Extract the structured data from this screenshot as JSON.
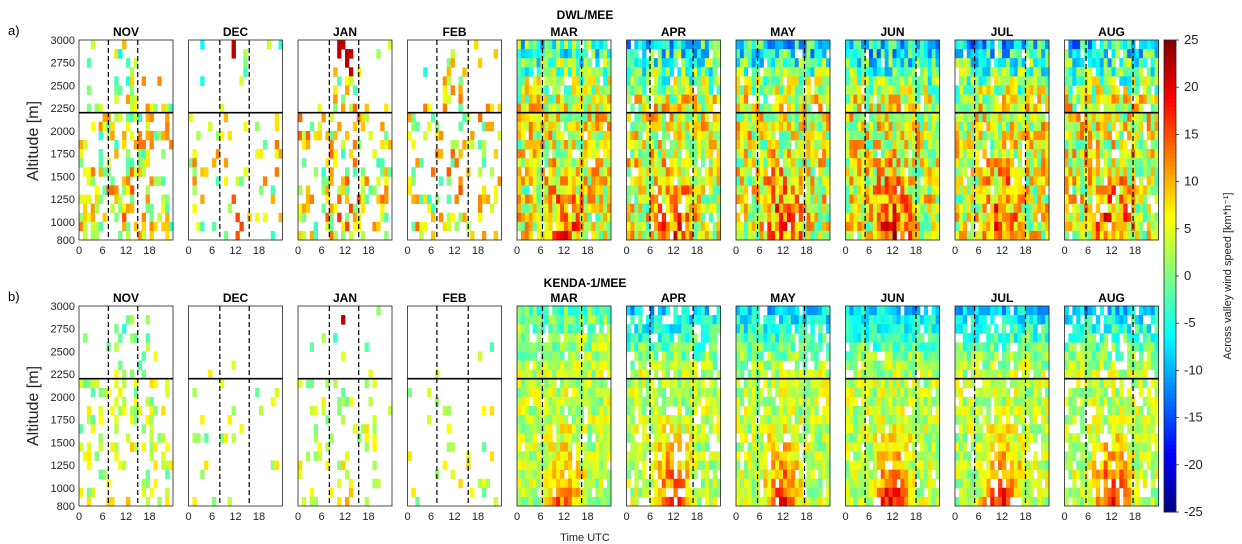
{
  "figure": {
    "row_letters": [
      "a)",
      "b)"
    ],
    "section_titles": [
      "DWL/MEE",
      "KENDA-1/MEE"
    ],
    "y_axis_label": "Altitude [m]",
    "x_axis_label": "Time UTC",
    "colorbar_label": "Across valley wind speed [km*h⁻¹]"
  },
  "chart_data": {
    "type": "heatmap",
    "rows": [
      {
        "title": "DWL/MEE",
        "letter": "a)"
      },
      {
        "title": "KENDA-1/MEE",
        "letter": "b)"
      }
    ],
    "months": [
      "NOV",
      "DEC",
      "JAN",
      "FEB",
      "MAR",
      "APR",
      "MAY",
      "JUN",
      "JUL",
      "AUG"
    ],
    "xlabel": "Time UTC",
    "ylabel": "Altitude [m]",
    "x_ticks": [
      0,
      6,
      12,
      18
    ],
    "y_ticks": [
      800,
      1000,
      1250,
      1500,
      1750,
      2000,
      2250,
      2500,
      2750,
      3000
    ],
    "xlim": [
      0,
      24
    ],
    "ylim": [
      800,
      3000
    ],
    "horizontal_line_altitude": 2200,
    "dashed_time_lines": {
      "NOV": [
        7.5,
        15
      ],
      "DEC": [
        8,
        15.5
      ],
      "JAN": [
        8,
        15.5
      ],
      "FEB": [
        7.5,
        15.5
      ],
      "MAR": [
        6.5,
        16.5
      ],
      "APR": [
        6,
        17
      ],
      "MAY": [
        5.5,
        17.5
      ],
      "JUN": [
        5,
        18
      ],
      "JUL": [
        5,
        18
      ],
      "AUG": [
        5.5,
        17.5
      ]
    },
    "colorbar": {
      "label": "Across valley wind speed [km*h⁻¹]",
      "range": [
        -25,
        25
      ],
      "ticks": [
        25,
        20,
        15,
        10,
        5,
        0,
        -5,
        -10,
        -15,
        -20,
        -25
      ],
      "colormap": "jet"
    }
  }
}
